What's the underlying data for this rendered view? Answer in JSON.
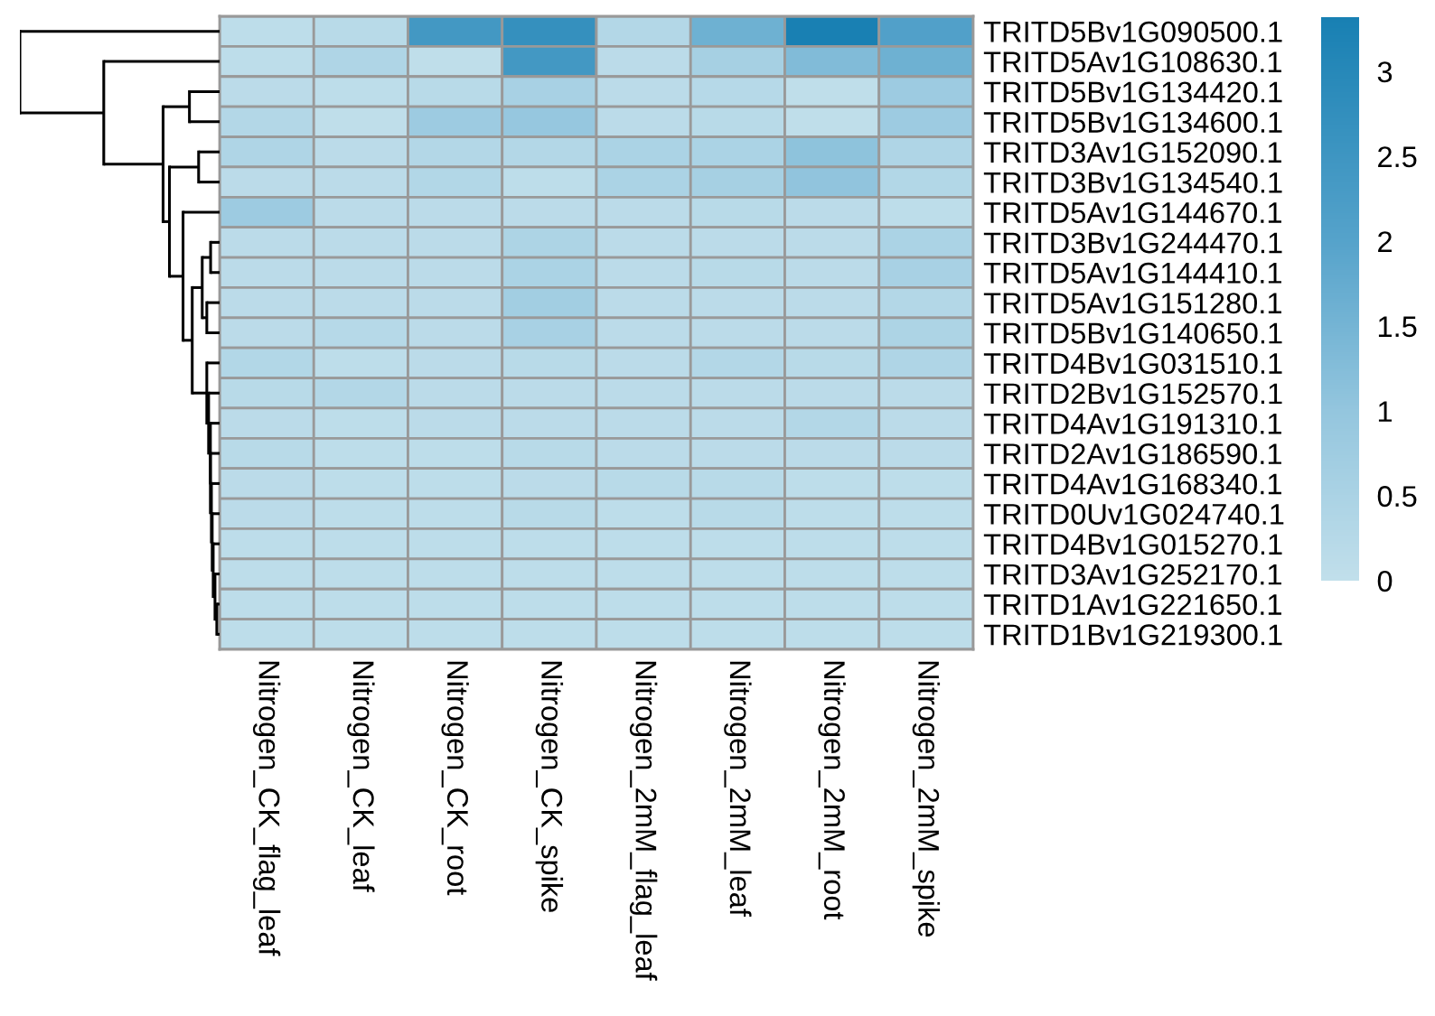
{
  "chart_data": {
    "type": "heatmap",
    "categories": [
      "Nitrogen_CK_flag_leaf",
      "Nitrogen_CK_leaf",
      "Nitrogen_CK_root",
      "Nitrogen_CK_spike",
      "Nitrogen_2mM_flag_leaf",
      "Nitrogen_2mM_leaf",
      "Nitrogen_2mM_root",
      "Nitrogen_2mM_spike"
    ],
    "y_categories": [
      "TRITD5Bv1G090500.1",
      "TRITD5Av1G108630.1",
      "TRITD5Bv1G134420.1",
      "TRITD5Bv1G134600.1",
      "TRITD3Av1G152090.1",
      "TRITD3Bv1G134540.1",
      "TRITD5Av1G144670.1",
      "TRITD3Bv1G244470.1",
      "TRITD5Av1G144410.1",
      "TRITD5Av1G151280.1",
      "TRITD5Bv1G140650.1",
      "TRITD4Bv1G031510.1",
      "TRITD2Bv1G152570.1",
      "TRITD4Av1G191310.1",
      "TRITD2Av1G186590.1",
      "TRITD4Av1G168340.1",
      "TRITD0Uv1G024740.1",
      "TRITD4Bv1G015270.1",
      "TRITD3Av1G252170.1",
      "TRITD1Av1G221650.1",
      "TRITD1Bv1G219300.1"
    ],
    "cells": [
      [
        0.1,
        0.2,
        2.4,
        2.7,
        0.3,
        1.6,
        3.3,
        2.1
      ],
      [
        0.1,
        0.4,
        0.05,
        2.4,
        0.15,
        0.6,
        1.3,
        1.6
      ],
      [
        0.15,
        0.1,
        0.2,
        0.55,
        0.15,
        0.25,
        0.05,
        0.8
      ],
      [
        0.3,
        0.05,
        0.8,
        0.95,
        0.15,
        0.2,
        0.05,
        0.8
      ],
      [
        0.4,
        0.15,
        0.3,
        0.3,
        0.5,
        0.5,
        1.1,
        0.4
      ],
      [
        0.15,
        0.15,
        0.35,
        0.1,
        0.5,
        0.6,
        1.05,
        0.35
      ],
      [
        0.8,
        0.15,
        0.15,
        0.15,
        0.15,
        0.2,
        0.15,
        0.1
      ],
      [
        0.15,
        0.15,
        0.15,
        0.45,
        0.15,
        0.15,
        0.15,
        0.5
      ],
      [
        0.15,
        0.15,
        0.15,
        0.5,
        0.15,
        0.2,
        0.15,
        0.55
      ],
      [
        0.15,
        0.15,
        0.15,
        0.7,
        0.15,
        0.15,
        0.15,
        0.3
      ],
      [
        0.15,
        0.25,
        0.15,
        0.55,
        0.15,
        0.15,
        0.15,
        0.45
      ],
      [
        0.35,
        0.1,
        0.15,
        0.2,
        0.15,
        0.3,
        0.2,
        0.4
      ],
      [
        0.2,
        0.3,
        0.15,
        0.15,
        0.15,
        0.15,
        0.15,
        0.15
      ],
      [
        0.15,
        0.1,
        0.15,
        0.15,
        0.15,
        0.15,
        0.3,
        0.15
      ],
      [
        0.2,
        0.1,
        0.1,
        0.2,
        0.15,
        0.15,
        0.15,
        0.15
      ],
      [
        0.15,
        0.1,
        0.1,
        0.15,
        0.2,
        0.2,
        0.1,
        0.1
      ],
      [
        0.15,
        0.1,
        0.1,
        0.2,
        0.1,
        0.2,
        0.1,
        0.1
      ],
      [
        0.1,
        0.1,
        0.1,
        0.1,
        0.1,
        0.1,
        0.1,
        0.1
      ],
      [
        0.1,
        0.1,
        0.1,
        0.1,
        0.1,
        0.1,
        0.1,
        0.1
      ],
      [
        0.1,
        0.1,
        0.1,
        0.1,
        0.1,
        0.1,
        0.1,
        0.1
      ],
      [
        0.1,
        0.1,
        0.1,
        0.1,
        0.1,
        0.1,
        0.1,
        0.1
      ]
    ],
    "clim": [
      0,
      3.32
    ],
    "cticks": [
      0,
      0.5,
      1,
      1.5,
      2,
      2.5,
      3
    ]
  }
}
